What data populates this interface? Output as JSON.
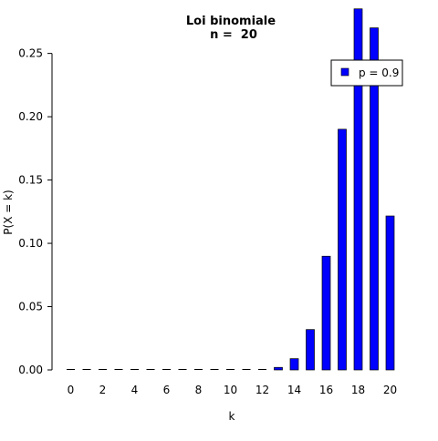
{
  "chart_data": {
    "type": "bar",
    "title": "Loi binomiale",
    "subtitle": "n =  20",
    "xlabel": "k",
    "ylabel": "P(X = k)",
    "x": [
      0,
      1,
      2,
      3,
      4,
      5,
      6,
      7,
      8,
      9,
      10,
      11,
      12,
      13,
      14,
      15,
      16,
      17,
      18,
      19,
      20
    ],
    "x_ticks": [
      0,
      2,
      4,
      6,
      8,
      10,
      12,
      14,
      16,
      18,
      20
    ],
    "y_ticks": [
      0.0,
      0.05,
      0.1,
      0.15,
      0.2,
      0.25
    ],
    "y_tick_labels": [
      "0.00",
      "0.05",
      "0.10",
      "0.15",
      "0.20",
      "0.25"
    ],
    "xlim": [
      -1,
      21
    ],
    "ylim": [
      0,
      0.285
    ],
    "grid": false,
    "legend_position": "top-right",
    "series": [
      {
        "name": "p = 0.9",
        "color": "#0000ff",
        "values": [
          0.0,
          0.0,
          0.0,
          0.0,
          0.0,
          0.0,
          0.0,
          0.0,
          0.0,
          0.0,
          0.0,
          0.0,
          0.0004,
          0.002,
          0.0089,
          0.0319,
          0.0898,
          0.1901,
          0.2852,
          0.2702,
          0.1216
        ]
      }
    ]
  }
}
